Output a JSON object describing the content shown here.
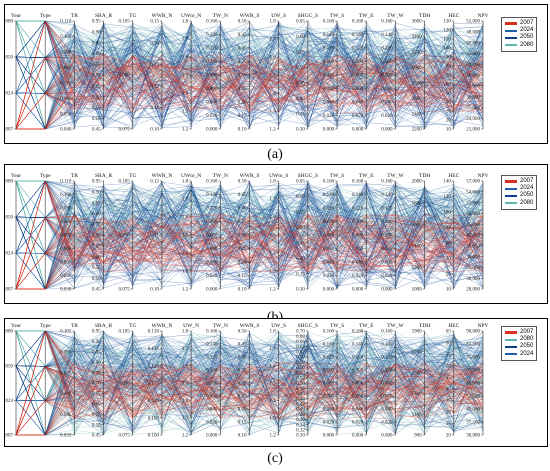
{
  "chart_data": [
    {
      "type": "parallel-coordinates",
      "caption": "(a)",
      "axes": [
        "Year",
        "Type",
        "TR",
        "SRA_R",
        "TG",
        "WWR_N",
        "UWto_N",
        "TW_N",
        "WWR_S",
        "UW_S",
        "SHGC_S",
        "TW_S",
        "TW_E",
        "TW_W",
        "TDH",
        "HEC",
        "NPV"
      ],
      "year_ticks": [
        "2007",
        "2024",
        "2050",
        "2080"
      ],
      "ticks": {
        "TR": [
          "0.110",
          "0.100",
          "0.090",
          "0.080",
          "0.070",
          "0.060",
          "0.050",
          "0.040"
        ],
        "SRA_R": [
          "0.95",
          "0.90",
          "0.85",
          "0.80",
          "0.75",
          "0.70",
          "0.65",
          "0.60",
          "0.55",
          "0.50",
          "0.45"
        ],
        "TG": [
          "0.105",
          "0.090",
          "0.075"
        ],
        "WWR_N": [
          "0.15",
          "0.14",
          "0.13",
          "0.12",
          "0.11",
          "0.10"
        ],
        "UWto_N": [
          "1.8",
          "1.7",
          "1.6",
          "1.5",
          "1.4",
          "1.3",
          "1.2"
        ],
        "TW_N": [
          "0.160",
          "0.140",
          "0.120",
          "0.100",
          "0.080",
          "0.060",
          "0.040",
          "0.020",
          "0.000"
        ],
        "WWR_S": [
          "0.50",
          "0.45",
          "0.40",
          "0.35",
          "0.30",
          "0.25",
          "0.20",
          "0.15",
          "0.10"
        ],
        "UW_S": [
          "1.8",
          "1.7",
          "1.6",
          "1.5",
          "1.4",
          "1.3",
          "1.2"
        ],
        "SHGC_S": [
          "0.65",
          "0.60",
          "0.55",
          "0.50",
          "0.45",
          "0.40",
          "0.35",
          "0.30"
        ],
        "TW_S": [
          "0.160",
          "0.140",
          "0.120",
          "0.100",
          "0.080",
          "0.060",
          "0.040",
          "0.020",
          "0.000"
        ],
        "TW_E": [
          "0.160",
          "0.140",
          "0.120",
          "0.100",
          "0.080",
          "0.060",
          "0.040",
          "0.020",
          "0.000"
        ],
        "TW_W": [
          "0.160",
          "0.140",
          "0.120",
          "0.100",
          "0.080",
          "0.060",
          "0.040",
          "0.020",
          "0.000"
        ],
        "TDH": [
          "3600",
          "3400",
          "3200",
          "3000",
          "2800",
          "2600",
          "2400",
          "2200"
        ],
        "HEC": [
          "130",
          "120",
          "110",
          "100",
          "90",
          "80",
          "70",
          "60",
          "50",
          "40",
          "30",
          "20",
          "10"
        ],
        "NPV": [
          "51,000",
          "48,000",
          "45,000",
          "42,000",
          "39,000",
          "36,000",
          "33,000",
          "30,000",
          "27,000",
          "24,000",
          "21,000"
        ]
      },
      "legend": [
        {
          "name": "2007",
          "color": "#d7301f"
        },
        {
          "name": "2024",
          "color": "#1f5fa8"
        },
        {
          "name": "2050",
          "color": "#0d3f8a"
        },
        {
          "name": "2080",
          "color": "#5fb4ac"
        }
      ]
    },
    {
      "type": "parallel-coordinates",
      "caption": "(b)",
      "axes": [
        "Year",
        "Type",
        "TR",
        "SRA_R",
        "TG",
        "WWR_N",
        "UWto_N",
        "TW_N",
        "WWR_S",
        "UWto_S",
        "SHGC_S",
        "TW_S",
        "TW_E",
        "TW_W",
        "TDH",
        "HEC",
        "NPV"
      ],
      "year_ticks": [
        "2007",
        "2024",
        "2050",
        "2080"
      ],
      "ticks": {
        "TR": [
          "0.110",
          "0.100",
          "0.090",
          "0.080",
          "0.070",
          "0.060",
          "0.050",
          "0.040",
          "0.030"
        ],
        "SRA_R": [
          "0.95",
          "0.90",
          "0.85",
          "0.80",
          "0.75",
          "0.70",
          "0.65",
          "0.60",
          "0.55",
          "0.50",
          "0.45"
        ],
        "TG": [
          "0.105",
          "0.090",
          "0.075"
        ],
        "WWR_N": [
          "0.12",
          "0.11",
          "0.10"
        ],
        "UWto_N": [
          "1.8",
          "1.7",
          "1.6",
          "1.5",
          "1.4",
          "1.3",
          "1.2"
        ],
        "TW_N": [
          "0.160",
          "0.140",
          "0.120",
          "0.100",
          "0.080",
          "0.060",
          "0.040",
          "0.020",
          "0.000"
        ],
        "WWR_S": [
          "0.50",
          "0.45",
          "0.40",
          "0.35",
          "0.30",
          "0.25",
          "0.20",
          "0.15",
          "0.10"
        ],
        "UWto_S": [
          "1.8",
          "1.7",
          "1.6",
          "1.5",
          "1.4",
          "1.3",
          "1.2"
        ],
        "SHGC_S": [
          "0.65",
          "0.60",
          "0.55",
          "0.50",
          "0.45",
          "0.40",
          "0.35",
          "0.30"
        ],
        "TW_S": [
          "0.160",
          "0.140",
          "0.120",
          "0.100",
          "0.080",
          "0.060",
          "0.040",
          "0.020",
          "0.000"
        ],
        "TW_E": [
          "0.160",
          "0.140",
          "0.120",
          "0.100",
          "0.080",
          "0.060",
          "0.040",
          "0.020",
          "0.000"
        ],
        "TW_W": [
          "0.160",
          "0.140",
          "0.120",
          "0.100",
          "0.080",
          "0.060",
          "0.040",
          "0.020",
          "0.000"
        ],
        "TDH": [
          "2000",
          "1800",
          "1600",
          "1400",
          "1200",
          "1000"
        ],
        "HEC": [
          "140",
          "120",
          "100",
          "80",
          "60",
          "40",
          "20",
          "10"
        ],
        "NPV": [
          "57,000",
          "54,000",
          "51,000",
          "48,000",
          "45,000",
          "42,000",
          "39,000",
          "36,000",
          "33,000",
          "30,000",
          "28,000"
        ]
      },
      "legend": [
        {
          "name": "2007",
          "color": "#d7301f"
        },
        {
          "name": "2024",
          "color": "#1f5fa8"
        },
        {
          "name": "2050",
          "color": "#0d3f8a"
        },
        {
          "name": "2080",
          "color": "#5fb4ac"
        }
      ]
    },
    {
      "type": "parallel-coordinates",
      "caption": "(c)",
      "axes": [
        "Year",
        "Type",
        "TR",
        "SRA_R",
        "TG",
        "WWR_N",
        "UW_N",
        "TW_N",
        "WWR_S",
        "UW_S",
        "SHGC_S",
        "TW_S",
        "TW_E",
        "TW_W",
        "TDH",
        "HEC",
        "NPV"
      ],
      "year_ticks": [
        "2007",
        "2024",
        "2050",
        "2080"
      ],
      "ticks": {
        "TR": [
          "0.105",
          "0.090",
          "0.075",
          "0.060",
          "0.045",
          "0.033"
        ],
        "SRA_R": [
          "0.95",
          "0.90",
          "0.85",
          "0.80",
          "0.75",
          "0.70",
          "0.65",
          "0.60",
          "0.55",
          "0.50",
          "0.45"
        ],
        "TG": [
          "0.105",
          "0.090",
          "0.075"
        ],
        "WWR_N": [
          "0.130",
          "0.125",
          "0.120",
          "0.115",
          "0.110",
          "0.105",
          "0.100"
        ],
        "UW_N": [
          "1.8",
          "1.7",
          "1.6",
          "1.5",
          "1.4",
          "1.3",
          "1.2"
        ],
        "TW_N": [
          "0.160",
          "0.140",
          "0.120",
          "0.100",
          "0.080",
          "0.060",
          "0.040",
          "0.020",
          "0.000"
        ],
        "WWR_S": [
          "0.50",
          "0.45",
          "0.40",
          "0.35",
          "0.30",
          "0.25",
          "0.20",
          "0.15",
          "0.10"
        ],
        "UW_S": [
          "1.8",
          "1.7",
          "1.6",
          "1.5",
          "1.4",
          "1.3",
          "1.2"
        ],
        "SHGC_S": [
          "0.70",
          "0.68",
          "0.66",
          "0.64",
          "0.62",
          "0.60",
          "0.58",
          "0.56",
          "0.54",
          "0.52",
          "0.50",
          "0.48",
          "0.46",
          "0.44",
          "0.42",
          "0.40",
          "0.38",
          "0.36",
          "0.34",
          "0.32",
          "0.30"
        ],
        "TW_S": [
          "0.160",
          "0.140",
          "0.120",
          "0.100",
          "0.080",
          "0.060",
          "0.040",
          "0.020",
          "0.000"
        ],
        "TW_E": [
          "0.160",
          "0.140",
          "0.120",
          "0.100",
          "0.080",
          "0.060",
          "0.040",
          "0.020",
          "0.000"
        ],
        "TW_W": [
          "0.160",
          "0.140",
          "0.120",
          "0.100",
          "0.080",
          "0.060",
          "0.040",
          "0.020",
          "0.000"
        ],
        "TDH": [
          "1900",
          "1700",
          "1500",
          "1300",
          "1100",
          "900"
        ],
        "HEC": [
          "65",
          "60",
          "55",
          "50",
          "45",
          "40",
          "35",
          "30",
          "25",
          "20"
        ],
        "NPV": [
          "90,000",
          "82,500",
          "75,000",
          "67,500",
          "60,000",
          "52,500",
          "45,000",
          "37,500",
          "30,000"
        ]
      },
      "legend": [
        {
          "name": "2007",
          "color": "#d7301f"
        },
        {
          "name": "2080",
          "color": "#5fb4ac"
        },
        {
          "name": "2050",
          "color": "#0d3f8a"
        },
        {
          "name": "2024",
          "color": "#1f5fa8"
        }
      ]
    }
  ]
}
